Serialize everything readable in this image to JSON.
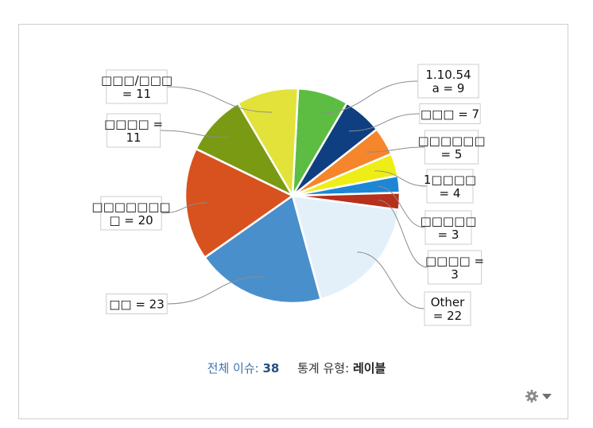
{
  "chart_data": {
    "type": "pie",
    "slices": [
      {
        "label": "1.10.54 a",
        "text": [
          "1.10.54",
          "a = 9"
        ],
        "value": 9,
        "color": "#5dbd43"
      },
      {
        "label": "□□□",
        "text": [
          "□□□ = 7"
        ],
        "value": 7,
        "color": "#0f3f80"
      },
      {
        "label": "□□□□□□",
        "text": [
          "□□□□□□",
          "= 5"
        ],
        "value": 5,
        "color": "#f5862c"
      },
      {
        "label": "1□□□□",
        "text": [
          "1□□□□",
          "= 4"
        ],
        "value": 4,
        "color": "#eeee16"
      },
      {
        "label": "□□□□□",
        "text": [
          "□□□□□",
          "= 3"
        ],
        "value": 3,
        "color": "#1d87d6"
      },
      {
        "label": "□□□□",
        "text": [
          "□□□□ =",
          "3"
        ],
        "value": 3,
        "color": "#b7301b"
      },
      {
        "label": "Other",
        "text": [
          "Other",
          "= 22"
        ],
        "value": 22,
        "color": "#e4f0f9"
      },
      {
        "label": "□□",
        "text": [
          "□□ = 23"
        ],
        "value": 23,
        "color": "#498fcc"
      },
      {
        "label": "□□□□□□□□",
        "text": [
          "□□□□□□□",
          "□ = 20"
        ],
        "value": 20,
        "color": "#d8521f"
      },
      {
        "label": "□□□□",
        "text": [
          "□□□□ =",
          "11"
        ],
        "value": 11,
        "color": "#7a9a14"
      },
      {
        "label": "□□□/□□□",
        "text": [
          "□□□/□□□",
          "= 11"
        ],
        "value": 11,
        "color": "#e2e23b"
      }
    ]
  },
  "footer": {
    "total_label": "전체 이슈:",
    "total_value": "38",
    "type_label": "통계 유형:",
    "type_value": "레이블"
  },
  "icons": {
    "settings": "gear-icon",
    "menu": "caret-down-icon"
  }
}
